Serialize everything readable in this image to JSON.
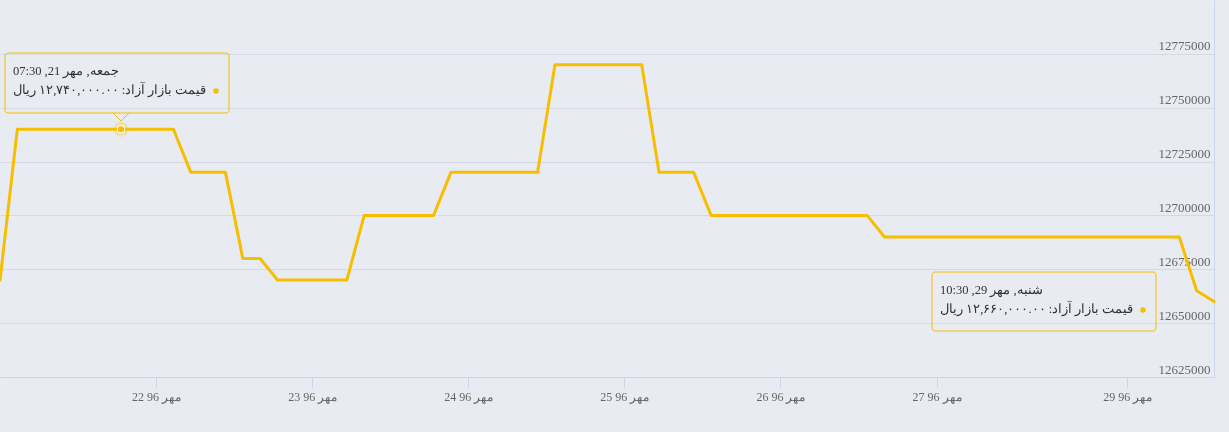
{
  "chart_data": {
    "type": "line",
    "categories": [
      null,
      null,
      null,
      null,
      null,
      null,
      null,
      null,
      null,
      "22 مهر 96",
      null,
      null,
      null,
      null,
      null,
      null,
      null,
      null,
      "23 مهر 96",
      null,
      null,
      null,
      null,
      null,
      null,
      null,
      null,
      "24 مهر 96",
      null,
      null,
      null,
      null,
      null,
      null,
      null,
      null,
      "25 مهر 96",
      null,
      null,
      null,
      null,
      null,
      null,
      null,
      null,
      "26 مهر 96",
      null,
      null,
      null,
      null,
      null,
      null,
      null,
      null,
      "27 مهر 96",
      null,
      null,
      null,
      null,
      null,
      null,
      null,
      null,
      null,
      null,
      "29 مهر 96",
      null,
      null,
      null,
      null,
      null
    ],
    "values": [
      12670000,
      12740000,
      12740000,
      12740000,
      12740000,
      12740000,
      12740000,
      12740000,
      12740000,
      12740000,
      12740000,
      12720000,
      12720000,
      12720000,
      12680000,
      12680000,
      12670000,
      12670000,
      12670000,
      12670000,
      12670000,
      12700000,
      12700000,
      12700000,
      12700000,
      12700000,
      12720000,
      12720000,
      12720000,
      12720000,
      12720000,
      12720000,
      12770000,
      12770000,
      12770000,
      12770000,
      12770000,
      12770000,
      12720000,
      12720000,
      12720000,
      12700000,
      12700000,
      12700000,
      12700000,
      12700000,
      12700000,
      12700000,
      12700000,
      12700000,
      12700000,
      12690000,
      12690000,
      12690000,
      12690000,
      12690000,
      12690000,
      12690000,
      12690000,
      12690000,
      12690000,
      12690000,
      12690000,
      12690000,
      12690000,
      12690000,
      12690000,
      12690000,
      12690000,
      12665000,
      12660000
    ],
    "color": "#f7be00",
    "line_style": "solid",
    "ylim": [
      12625000,
      12800000
    ],
    "yticks": [
      12625000,
      12650000,
      12675000,
      12700000,
      12725000,
      12750000,
      12775000
    ],
    "grid": "y",
    "annotations": [
      {
        "text": "جمعه, مهر 21, 07:30\nقیمت بازار آزاد: ۱۲,۷۴۰,۰۰۰.۰۰ ریال",
        "y": 12740000
      },
      "شنبه, مهر 29, 10:30\nقیمت بازار آزاد: ۱۲,۶۶۰,۰۰۰.۰۰ ریال"
    ]
  }
}
